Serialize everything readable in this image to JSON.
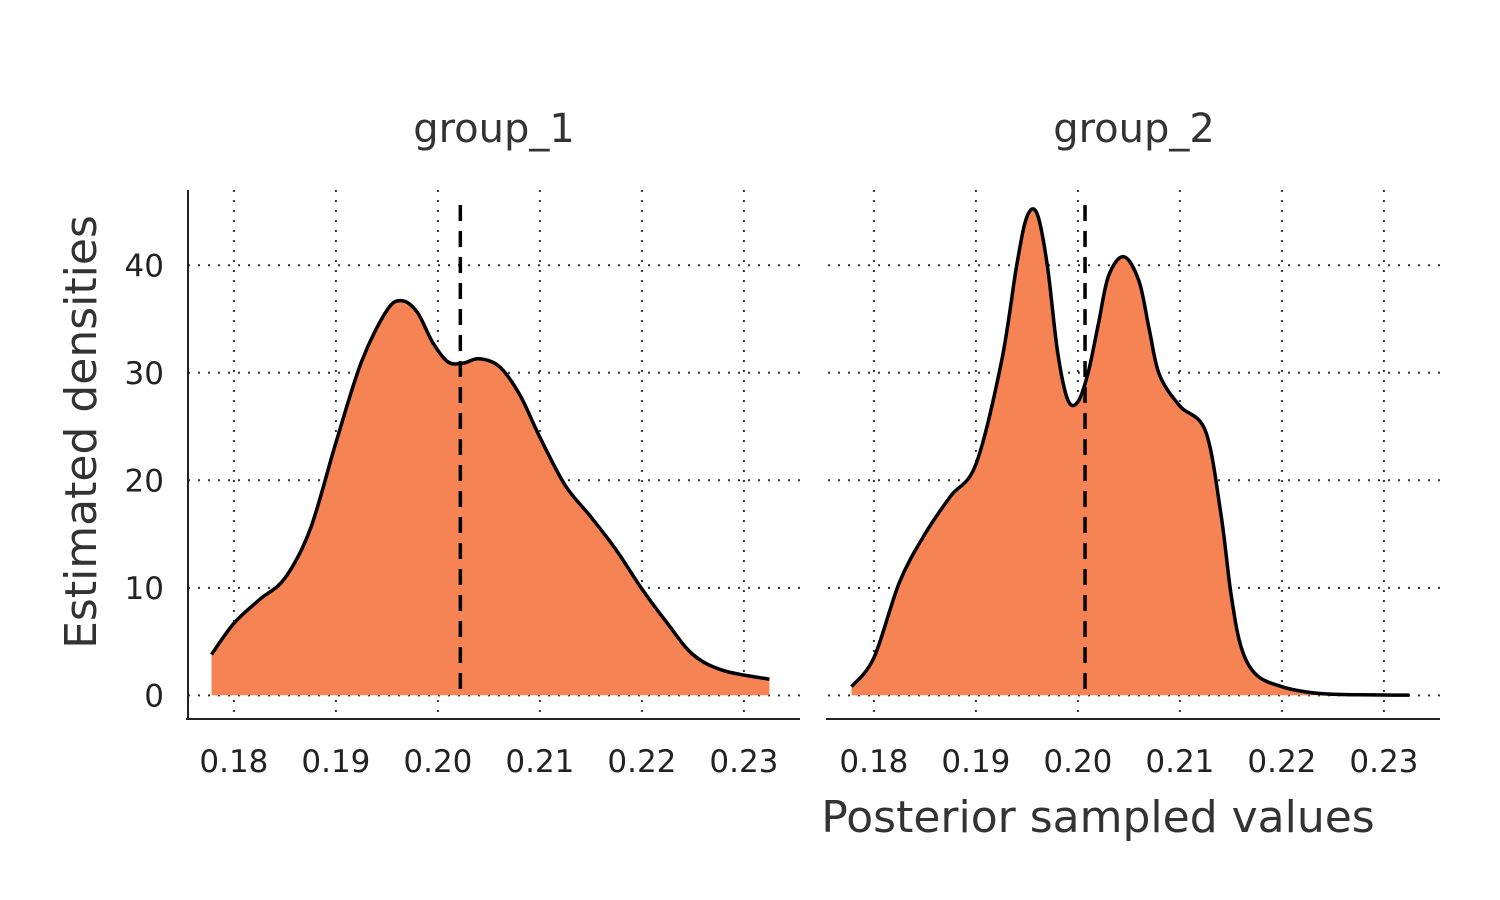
{
  "chart_data": {
    "type": "area",
    "ylabel": "Estimated densities",
    "xlabel": "Posterior sampled values",
    "xlim": [
      0.1755,
      0.2355
    ],
    "ylim": [
      -2.2,
      47
    ],
    "x_ticks": [
      "0.18",
      "0.19",
      "0.20",
      "0.21",
      "0.22",
      "0.23"
    ],
    "x_tick_values": [
      0.18,
      0.19,
      0.2,
      0.21,
      0.22,
      0.23
    ],
    "y_ticks": [
      "0",
      "10",
      "20",
      "30",
      "40"
    ],
    "y_tick_values": [
      0,
      10,
      20,
      30,
      40
    ],
    "grid": true,
    "colors": {
      "fill": "#F58354",
      "line": "#000000"
    },
    "panels": [
      {
        "title": "group_1",
        "reference_line_x": 0.2022,
        "x": [
          0.1778,
          0.18,
          0.1825,
          0.185,
          0.1875,
          0.19,
          0.1925,
          0.195,
          0.1965,
          0.198,
          0.1995,
          0.201,
          0.2025,
          0.204,
          0.206,
          0.208,
          0.21,
          0.2125,
          0.215,
          0.2175,
          0.22,
          0.2225,
          0.225,
          0.228,
          0.2325
        ],
        "y": [
          3.8,
          6.7,
          8.9,
          10.9,
          15.5,
          23.5,
          31.0,
          35.8,
          36.7,
          35.6,
          32.8,
          31.0,
          30.9,
          31.3,
          30.6,
          28.0,
          24.0,
          19.5,
          16.6,
          13.5,
          9.9,
          6.7,
          3.8,
          2.3,
          1.5
        ]
      },
      {
        "title": "group_2",
        "reference_line_x": 0.2007,
        "x": [
          0.1778,
          0.18,
          0.1825,
          0.185,
          0.1875,
          0.19,
          0.1925,
          0.194,
          0.195,
          0.196,
          0.197,
          0.198,
          0.199,
          0.2,
          0.201,
          0.202,
          0.203,
          0.2045,
          0.206,
          0.207,
          0.208,
          0.21,
          0.2125,
          0.214,
          0.215,
          0.216,
          0.2175,
          0.22,
          0.2225,
          0.225,
          0.2275,
          0.23,
          0.2325
        ],
        "y": [
          0.8,
          3.5,
          10.5,
          15.0,
          18.5,
          21.5,
          31.0,
          40.0,
          44.5,
          44.8,
          40.0,
          32.0,
          27.5,
          27.3,
          30.0,
          34.5,
          39.0,
          40.8,
          38.5,
          34.0,
          29.8,
          26.9,
          24.6,
          17.0,
          9.5,
          4.5,
          1.9,
          0.8,
          0.3,
          0.1,
          0.05,
          0.03,
          0.02
        ]
      }
    ]
  }
}
